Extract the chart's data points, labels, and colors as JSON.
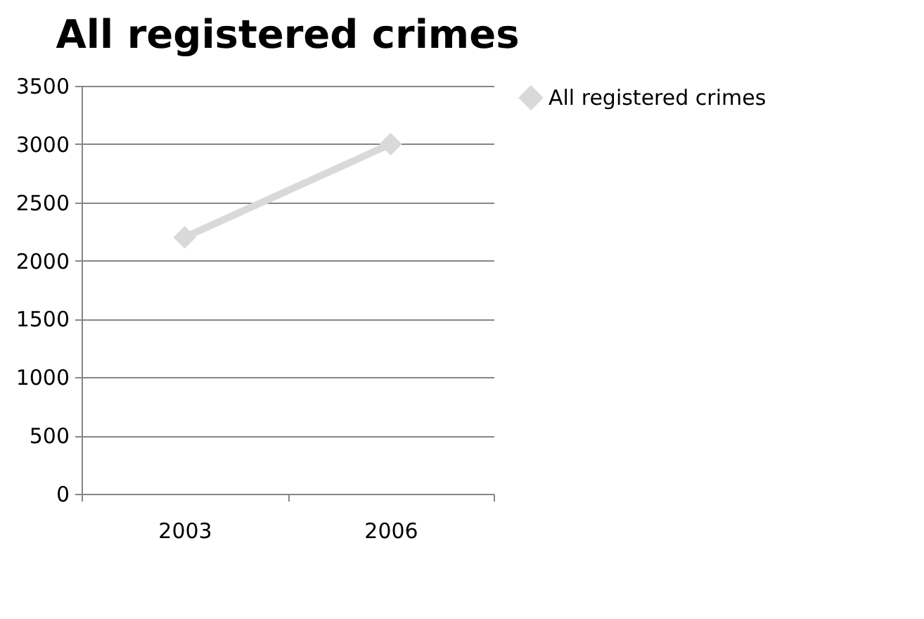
{
  "chart_data": {
    "type": "line",
    "title": "All registered crimes",
    "categories": [
      "2003",
      "2006"
    ],
    "series": [
      {
        "name": "All registered crimes",
        "color": "#d9d9d9",
        "values": [
          2200,
          3000
        ]
      }
    ],
    "ylim": [
      0,
      3500
    ],
    "yticks": [
      0,
      500,
      1000,
      1500,
      2000,
      2500,
      3000,
      3500
    ],
    "grid": "y",
    "legend": "right",
    "marker": "diamond",
    "line_style": "solid"
  }
}
